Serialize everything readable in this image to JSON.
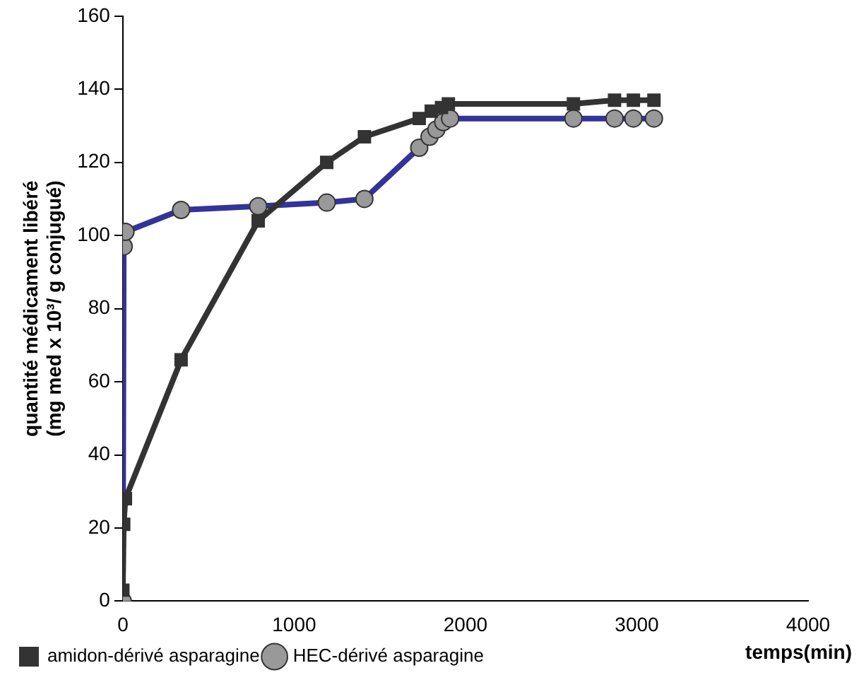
{
  "chart_data": {
    "type": "line",
    "xlabel": "temps(min)",
    "ylabel": "quantité médicament libéré\n(mg med x 10³/ g conjugué)",
    "xlim": [
      0,
      4000
    ],
    "xticks": [
      0,
      1000,
      2000,
      3000,
      4000
    ],
    "ylim": [
      0,
      160
    ],
    "yticks": [
      0,
      20,
      40,
      60,
      80,
      100,
      120,
      140,
      160
    ],
    "grid": false,
    "legend": "bottom left",
    "line_style": "solid",
    "series": [
      {
        "name": "amidon-dérivé asparagine",
        "color": "#333333",
        "marker": "square",
        "x": [
          0,
          5,
          15,
          340,
          790,
          1190,
          1410,
          1730,
          1800,
          1860,
          1900,
          2630,
          2870,
          2980,
          3100
        ],
        "values": [
          3,
          21,
          28,
          66,
          104,
          120,
          127,
          132,
          134,
          135,
          136,
          136,
          137,
          137,
          137
        ]
      },
      {
        "name": "HEC-dérivé asparagine",
        "color": "#333399",
        "marker": "circle",
        "x": [
          0,
          5,
          15,
          340,
          790,
          1190,
          1410,
          1730,
          1790,
          1830,
          1870,
          1910,
          2630,
          2870,
          2980,
          3100
        ],
        "values": [
          0,
          97,
          101,
          107,
          108,
          109,
          110,
          124,
          127,
          129,
          131,
          132,
          132,
          132,
          132,
          132
        ]
      }
    ]
  }
}
